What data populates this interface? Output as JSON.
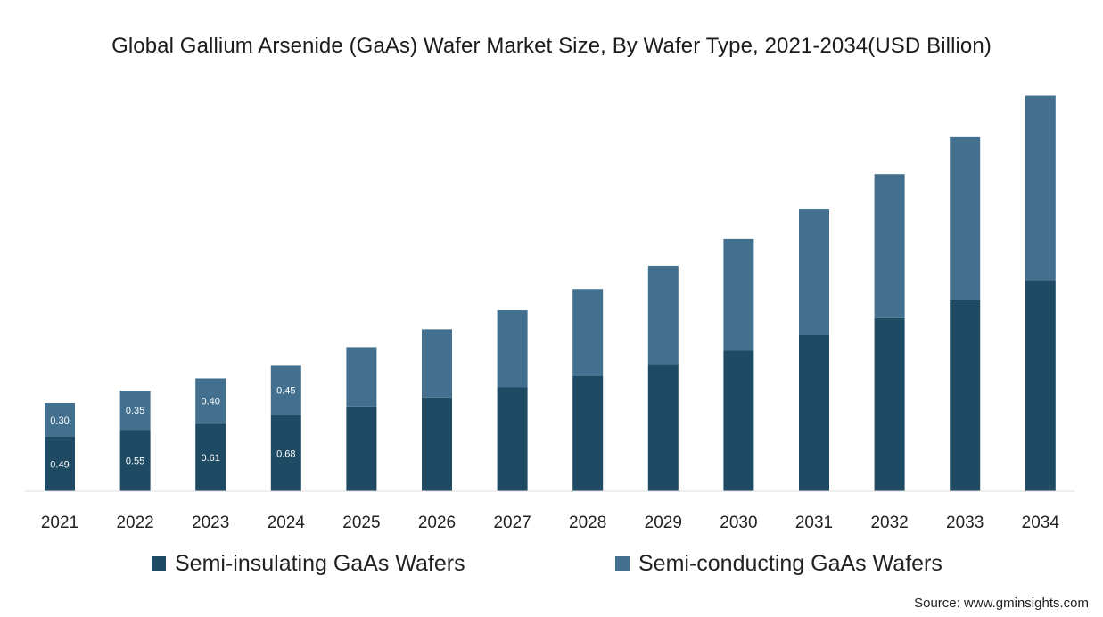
{
  "chart_data": {
    "type": "bar",
    "stacked": true,
    "title": "Global Gallium Arsenide (GaAs) Wafer Market Size, By Wafer Type, 2021-2034(USD Billion)",
    "xlabel": "",
    "ylabel": "",
    "categories": [
      "2021",
      "2022",
      "2023",
      "2024",
      "2025",
      "2026",
      "2027",
      "2028",
      "2029",
      "2030",
      "2031",
      "2032",
      "2033",
      "2034"
    ],
    "series": [
      {
        "name": "Semi-insulating GaAs Wafers",
        "color": "#1e4a63",
        "values": [
          0.49,
          0.55,
          0.61,
          0.68,
          0.76,
          0.84,
          0.93,
          1.03,
          1.14,
          1.26,
          1.4,
          1.55,
          1.71,
          1.89
        ],
        "labels": [
          "0.49",
          "0.55",
          "0.61",
          "0.68",
          "",
          "",
          "",
          "",
          "",
          "",
          "",
          "",
          "",
          ""
        ]
      },
      {
        "name": "Semi-conducting GaAs Wafers",
        "color": "#43708f",
        "values": [
          0.3,
          0.35,
          0.4,
          0.45,
          0.53,
          0.61,
          0.69,
          0.78,
          0.88,
          1.0,
          1.13,
          1.29,
          1.46,
          1.65
        ],
        "labels": [
          "0.30",
          "0.35",
          "0.40",
          "0.45",
          "",
          "",
          "",
          "",
          "",
          "",
          "",
          "",
          "",
          ""
        ]
      }
    ],
    "ylim": [
      0,
      3.6
    ],
    "grid": false,
    "legend_position": "bottom"
  },
  "source": "Source: www.gminsights.com"
}
